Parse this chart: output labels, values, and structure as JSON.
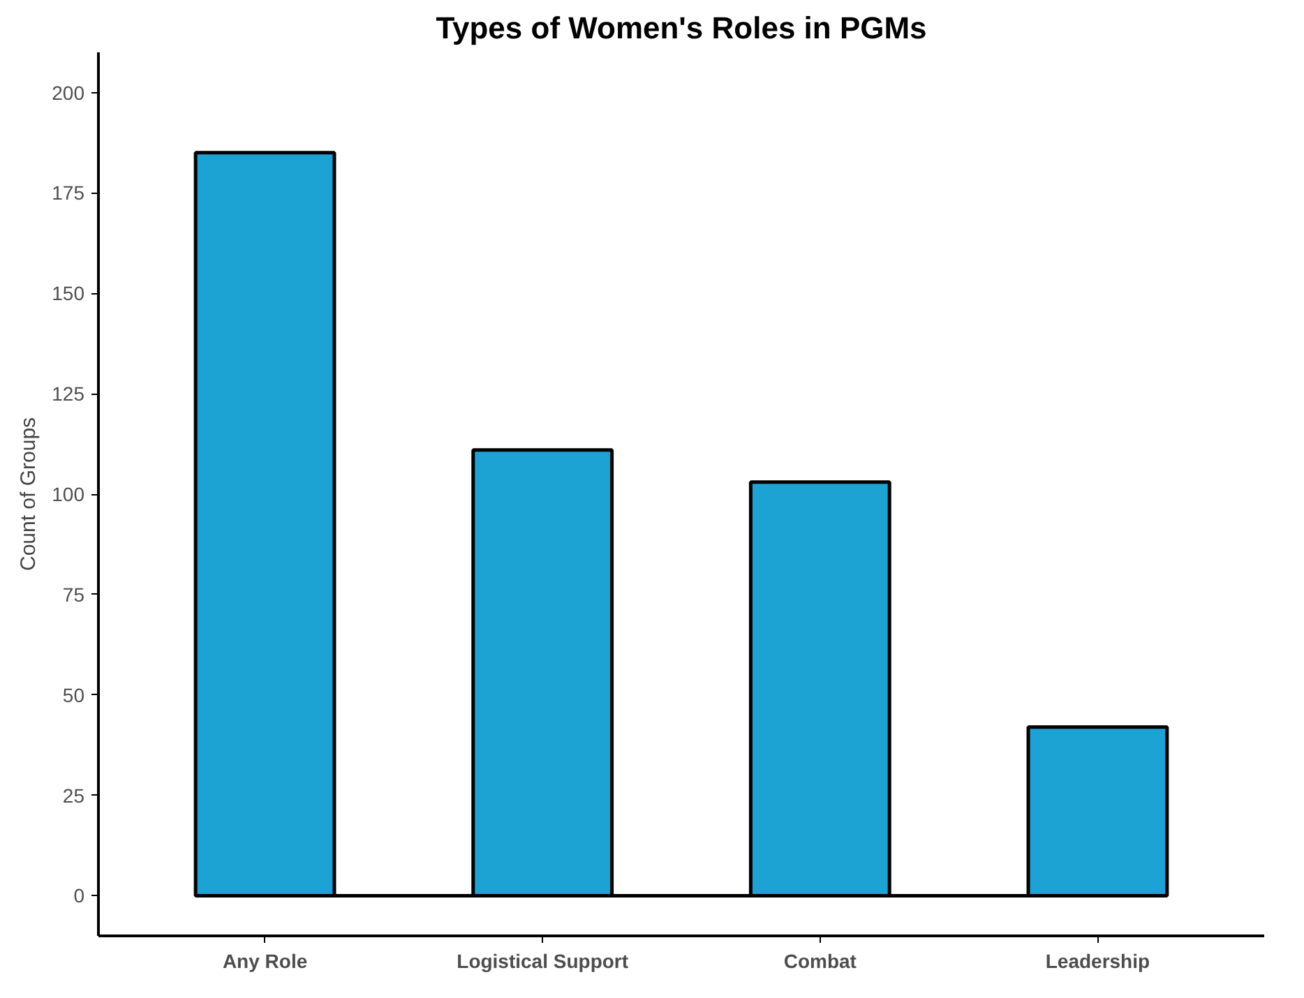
{
  "chart_data": {
    "type": "bar",
    "title": "Types of Women's Roles in PGMs",
    "ylabel": "Count of Groups",
    "categories": [
      "Any Role",
      "Logistical Support",
      "Combat",
      "Leadership"
    ],
    "values": [
      185,
      111,
      103,
      42
    ],
    "color": "#1ca3d3",
    "ylim": [
      -10,
      210
    ],
    "yticks": [
      0,
      25,
      50,
      75,
      100,
      125,
      150,
      175,
      200
    ],
    "grid": false,
    "ref_lines": [
      {
        "axis": "y",
        "value": 0,
        "color": "#000000"
      }
    ]
  }
}
